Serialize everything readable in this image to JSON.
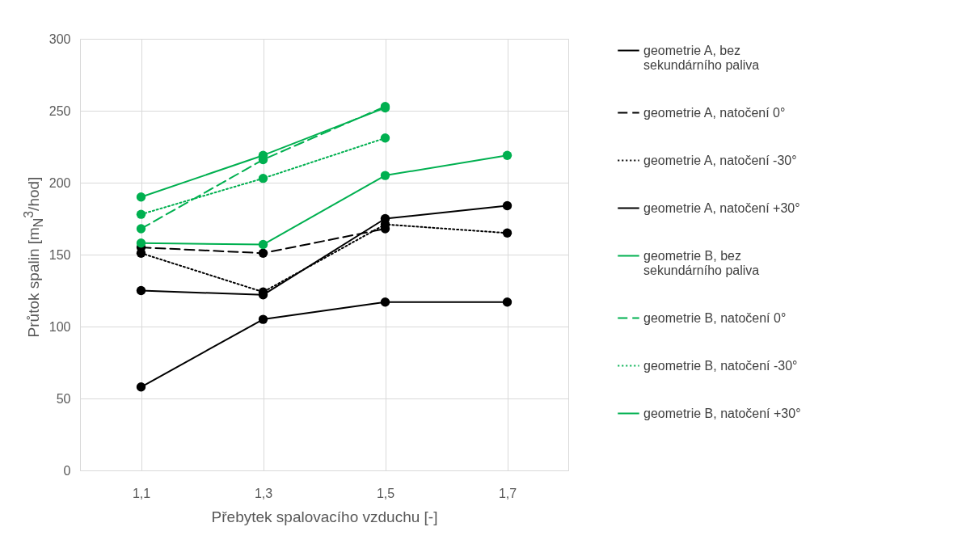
{
  "chart_data": {
    "type": "line",
    "xlabel": "Přebytek spalovacího vzduchu [-]",
    "ylabel": "Průtok spalin [m$_{N}$$^{3}$/hod]",
    "categories": [
      "1,1",
      "1,3",
      "1,5",
      "1,7"
    ],
    "ylim": [
      0,
      300
    ],
    "yticks": [
      0,
      50,
      100,
      150,
      200,
      250,
      300
    ],
    "grid": true,
    "legend": "right",
    "marker": "circle",
    "series": [
      {
        "name": "geometrie A, bez sekundárního paliva",
        "color": "#000000",
        "line_style": "solid",
        "values": [
          58,
          105,
          117,
          117
        ]
      },
      {
        "name": "geometrie A, natočení 0°",
        "color": "#000000",
        "line_style": "dashed",
        "values": [
          155,
          151,
          168,
          null
        ]
      },
      {
        "name": "geometrie A, natočení -30°",
        "color": "#000000",
        "line_style": "dotted",
        "values": [
          151,
          124,
          171,
          165
        ]
      },
      {
        "name": "geometrie A, natočení +30°",
        "color": "#000000",
        "line_style": "solid",
        "values": [
          125,
          122,
          175,
          184
        ]
      },
      {
        "name": "geometrie B, bez sekundárního paliva",
        "color": "#00b050",
        "line_style": "solid",
        "values": [
          158,
          157,
          205,
          219
        ]
      },
      {
        "name": "geometrie B, natočení 0°",
        "color": "#00b050",
        "line_style": "dashed",
        "values": [
          168,
          216,
          253,
          null
        ]
      },
      {
        "name": "geometrie B, natočení -30°",
        "color": "#00b050",
        "line_style": "dotted",
        "values": [
          178,
          203,
          231,
          null
        ]
      },
      {
        "name": "geometrie B, natočení +30°",
        "color": "#00b050",
        "line_style": "solid",
        "values": [
          190,
          219,
          252,
          null
        ]
      }
    ]
  }
}
